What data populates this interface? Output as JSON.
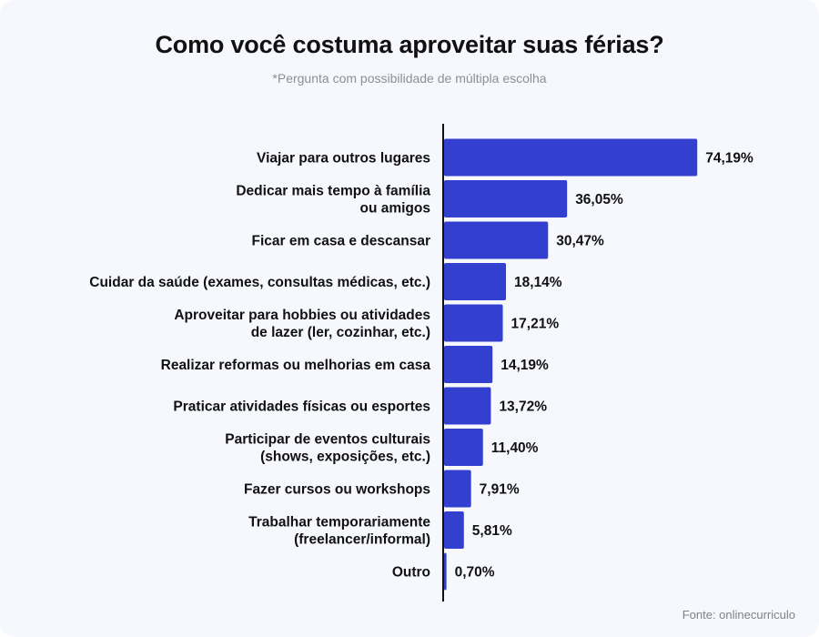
{
  "chart_data": {
    "type": "bar",
    "orientation": "horizontal",
    "title": "Como você costuma aproveitar suas férias?",
    "subtitle": "*Pergunta com possibilidade de múltipla escolha",
    "source": "Fonte: onlinecurriculo",
    "bar_color": "#3340cf",
    "categories": [
      [
        "Viajar para outros lugares"
      ],
      [
        "Dedicar mais tempo à família",
        "ou amigos"
      ],
      [
        "Ficar em casa e descansar"
      ],
      [
        "Cuidar da saúde (exames, consultas médicas, etc.)"
      ],
      [
        "Aproveitar para hobbies ou atividades",
        "de lazer (ler, cozinhar, etc.)"
      ],
      [
        "Realizar reformas ou melhorias em casa"
      ],
      [
        "Praticar atividades físicas ou esportes"
      ],
      [
        "Participar de eventos culturais",
        "(shows, exposições, etc.)"
      ],
      [
        "Fazer cursos ou workshops"
      ],
      [
        "Trabalhar temporariamente",
        "(freelancer/informal)"
      ],
      [
        "Outro"
      ]
    ],
    "values": [
      74.19,
      36.05,
      30.47,
      18.14,
      17.21,
      14.19,
      13.72,
      11.4,
      7.91,
      5.81,
      0.7
    ],
    "value_labels": [
      "74,19%",
      "36,05%",
      "30,47%",
      "18,14%",
      "17,21%",
      "14,19%",
      "13,72%",
      "11,40%",
      "7,91%",
      "5,81%",
      "0,70%"
    ],
    "xlim": [
      0,
      100
    ],
    "grid": false,
    "legend": "none"
  }
}
